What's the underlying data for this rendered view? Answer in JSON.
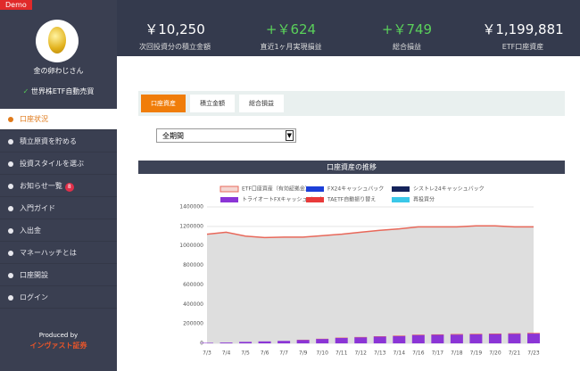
{
  "demo": "Demo",
  "sidebar": {
    "user": "金の卵わじさん",
    "plan": "世界株ETF自動売買",
    "menu": [
      "口座状況",
      "積立原資を貯める",
      "投資スタイルを選ぶ",
      "お知らせ一覧",
      "入門ガイド",
      "入出金",
      "マネーハッチとは",
      "口座開設",
      "ログイン"
    ],
    "badge": "8",
    "produced": "Produced by",
    "company": "インヴァスト証券"
  },
  "stats": [
    {
      "value": "￥10,250",
      "label": "次回投資分の積立金額"
    },
    {
      "value": "+￥624",
      "label": "直近1ヶ月実現損益"
    },
    {
      "value": "+￥749",
      "label": "総合損益"
    },
    {
      "value": "￥1,199,881",
      "label": "ETF口座資産"
    }
  ],
  "tabs": [
    "口座資産",
    "積立金額",
    "総合損益"
  ],
  "select": "全期間",
  "chart_data": {
    "type": "combo",
    "title": "口座資産の推移",
    "categories": [
      "7/3",
      "7/4",
      "7/5",
      "7/6",
      "7/7",
      "7/9",
      "7/10",
      "7/11",
      "7/12",
      "7/13",
      "7/14",
      "7/16",
      "7/17",
      "7/18",
      "7/19",
      "7/20",
      "7/21",
      "7/23"
    ],
    "series": [
      {
        "name": "ETF口座資産（有効証拠金）",
        "kind": "area",
        "color": "#e8685a",
        "values": [
          1120000,
          1140000,
          1100000,
          1085000,
          1090000,
          1090000,
          1105000,
          1120000,
          1140000,
          1160000,
          1175000,
          1195000,
          1195000,
          1195000,
          1205000,
          1205000,
          1195000,
          1195000
        ]
      },
      {
        "name": "FX24キャッシュバック",
        "kind": "bar",
        "color": "#1c3fd8",
        "values": [
          0,
          0,
          0,
          0,
          0,
          0,
          0,
          0,
          0,
          0,
          0,
          0,
          0,
          0,
          0,
          0,
          0,
          0
        ]
      },
      {
        "name": "シストレ24キャッシュバック",
        "kind": "bar",
        "color": "#14235a",
        "values": [
          0,
          0,
          0,
          0,
          0,
          0,
          0,
          0,
          0,
          0,
          0,
          0,
          0,
          0,
          0,
          0,
          0,
          0
        ]
      },
      {
        "name": "トライオートFXキャッシュバック",
        "kind": "bar",
        "color": "#8b35d6",
        "values": [
          5000,
          8000,
          15000,
          20000,
          25000,
          35000,
          45000,
          55000,
          62000,
          70000,
          75000,
          85000,
          88000,
          90000,
          92000,
          95000,
          98000,
          100000
        ]
      },
      {
        "name": "TAETF自動振り替え",
        "kind": "bar",
        "color": "#e83a3a",
        "values": [
          0,
          0,
          0,
          0,
          0,
          2000,
          2000,
          3000,
          3000,
          3000,
          4000,
          4000,
          4000,
          5000,
          5000,
          5000,
          5000,
          6000
        ]
      },
      {
        "name": "再投資分",
        "kind": "bar",
        "color": "#3ac8e8",
        "values": [
          0,
          0,
          0,
          0,
          0,
          0,
          0,
          0,
          0,
          0,
          0,
          0,
          0,
          0,
          0,
          0,
          0,
          0
        ]
      }
    ],
    "ylim": [
      0,
      1400000
    ],
    "yticks": [
      0,
      200000,
      400000,
      600000,
      800000,
      1000000,
      1200000,
      1400000
    ],
    "grid": true
  }
}
